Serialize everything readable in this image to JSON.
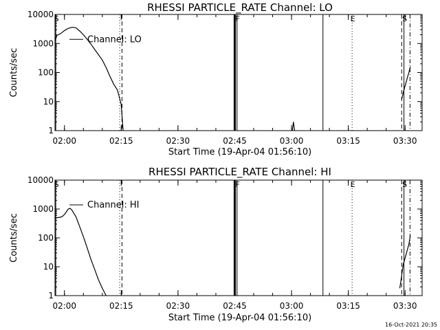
{
  "timestamp": "16-Oct-2021 20:35",
  "chart_data": [
    {
      "type": "line",
      "title": "RHESSI PARTICLE_RATE Channel: LO",
      "xlabel": "Start Time (19-Apr-04 01:56:10)",
      "ylabel": "Counts/sec",
      "yscale": "log",
      "ylim": [
        1,
        10000
      ],
      "xlim_min": [
        117.5,
        214.5
      ],
      "x_ticks": [
        {
          "t": 120,
          "label": "02:00"
        },
        {
          "t": 135,
          "label": "02:15"
        },
        {
          "t": 150,
          "label": "02:30"
        },
        {
          "t": 165,
          "label": "02:45"
        },
        {
          "t": 180,
          "label": "03:00"
        },
        {
          "t": 195,
          "label": "03:15"
        },
        {
          "t": 210,
          "label": "03:30"
        }
      ],
      "y_ticks": [
        {
          "v": 1,
          "label": "1"
        },
        {
          "v": 10,
          "label": "10"
        },
        {
          "v": 100,
          "label": "100"
        },
        {
          "v": 1000,
          "label": "1000"
        },
        {
          "v": 10000,
          "label": "10000"
        }
      ],
      "legend": "Channel: LO",
      "markers": [
        {
          "t": 117.7,
          "label": "S",
          "style": "solid"
        },
        {
          "t": 134.6,
          "label": "",
          "style": "dotted"
        },
        {
          "t": 135.2,
          "label": "",
          "style": "dashed"
        },
        {
          "t": 164.8,
          "label": "",
          "style": "solid"
        },
        {
          "t": 165.0,
          "label": "F",
          "style": "solid"
        },
        {
          "t": 165.2,
          "label": "",
          "style": "solid"
        },
        {
          "t": 165.6,
          "label": "F",
          "style": "solid"
        },
        {
          "t": 188.3,
          "label": "",
          "style": "solid"
        },
        {
          "t": 196.0,
          "label": "E",
          "style": "dotted"
        },
        {
          "t": 209.1,
          "label": "",
          "style": "dashed"
        },
        {
          "t": 209.7,
          "label": "S",
          "style": "solid"
        },
        {
          "t": 211.3,
          "label": "",
          "style": "dashdot"
        }
      ],
      "series": [
        {
          "name": "segment-1",
          "x": [
            117.5,
            118,
            119,
            120,
            121,
            122,
            123,
            124,
            125,
            126,
            127,
            128,
            129,
            130,
            131,
            132,
            133,
            134,
            135,
            135.5
          ],
          "y": [
            1200,
            1900,
            2200,
            2800,
            3300,
            3600,
            3500,
            2700,
            2000,
            1400,
            950,
            620,
            410,
            270,
            150,
            75,
            40,
            25,
            8,
            1
          ]
        },
        {
          "name": "segment-2",
          "x": [
            180.2,
            180.5,
            180.8
          ],
          "y": [
            1,
            2,
            1
          ]
        },
        {
          "name": "segment-3",
          "x": [
            209.1,
            209.5,
            210,
            210.5,
            211,
            211.4
          ],
          "y": [
            12,
            20,
            35,
            60,
            100,
            160
          ]
        }
      ]
    },
    {
      "type": "line",
      "title": "RHESSI PARTICLE_RATE Channel: HI",
      "xlabel": "Start Time (19-Apr-04 01:56:10)",
      "ylabel": "Counts/sec",
      "yscale": "log",
      "ylim": [
        1,
        10000
      ],
      "xlim_min": [
        117.5,
        214.5
      ],
      "x_ticks": [
        {
          "t": 120,
          "label": "02:00"
        },
        {
          "t": 135,
          "label": "02:15"
        },
        {
          "t": 150,
          "label": "02:30"
        },
        {
          "t": 165,
          "label": "02:45"
        },
        {
          "t": 180,
          "label": "03:00"
        },
        {
          "t": 195,
          "label": "03:15"
        },
        {
          "t": 210,
          "label": "03:30"
        }
      ],
      "y_ticks": [
        {
          "v": 1,
          "label": "1"
        },
        {
          "v": 10,
          "label": "10"
        },
        {
          "v": 100,
          "label": "100"
        },
        {
          "v": 1000,
          "label": "1000"
        },
        {
          "v": 10000,
          "label": "10000"
        }
      ],
      "legend": "Channel: HI",
      "markers": [
        {
          "t": 117.7,
          "label": "S",
          "style": "solid"
        },
        {
          "t": 134.6,
          "label": "",
          "style": "dotted"
        },
        {
          "t": 135.2,
          "label": "",
          "style": "dashed"
        },
        {
          "t": 164.8,
          "label": "",
          "style": "solid"
        },
        {
          "t": 165.0,
          "label": "F",
          "style": "solid"
        },
        {
          "t": 165.2,
          "label": "",
          "style": "solid"
        },
        {
          "t": 165.6,
          "label": "F",
          "style": "solid"
        },
        {
          "t": 188.3,
          "label": "",
          "style": "solid"
        },
        {
          "t": 196.0,
          "label": "E",
          "style": "dotted"
        },
        {
          "t": 209.1,
          "label": "",
          "style": "dashed"
        },
        {
          "t": 209.7,
          "label": "S",
          "style": "solid"
        },
        {
          "t": 211.3,
          "label": "",
          "style": "dashdot"
        }
      ],
      "series": [
        {
          "name": "segment-1",
          "x": [
            117.5,
            118,
            119,
            119.5,
            120,
            120.5,
            121,
            121.5,
            122,
            123,
            124,
            125,
            126,
            127,
            128,
            129,
            130,
            131
          ],
          "y": [
            470,
            500,
            520,
            560,
            650,
            800,
            1000,
            1050,
            900,
            550,
            250,
            110,
            45,
            18,
            8,
            3.5,
            1.8,
            1
          ]
        },
        {
          "name": "segment-2",
          "x": [
            208.6,
            209,
            209.5,
            210,
            210.5,
            211,
            211.4
          ],
          "y": [
            1.8,
            4,
            12,
            20,
            35,
            60,
            120
          ]
        }
      ]
    }
  ]
}
